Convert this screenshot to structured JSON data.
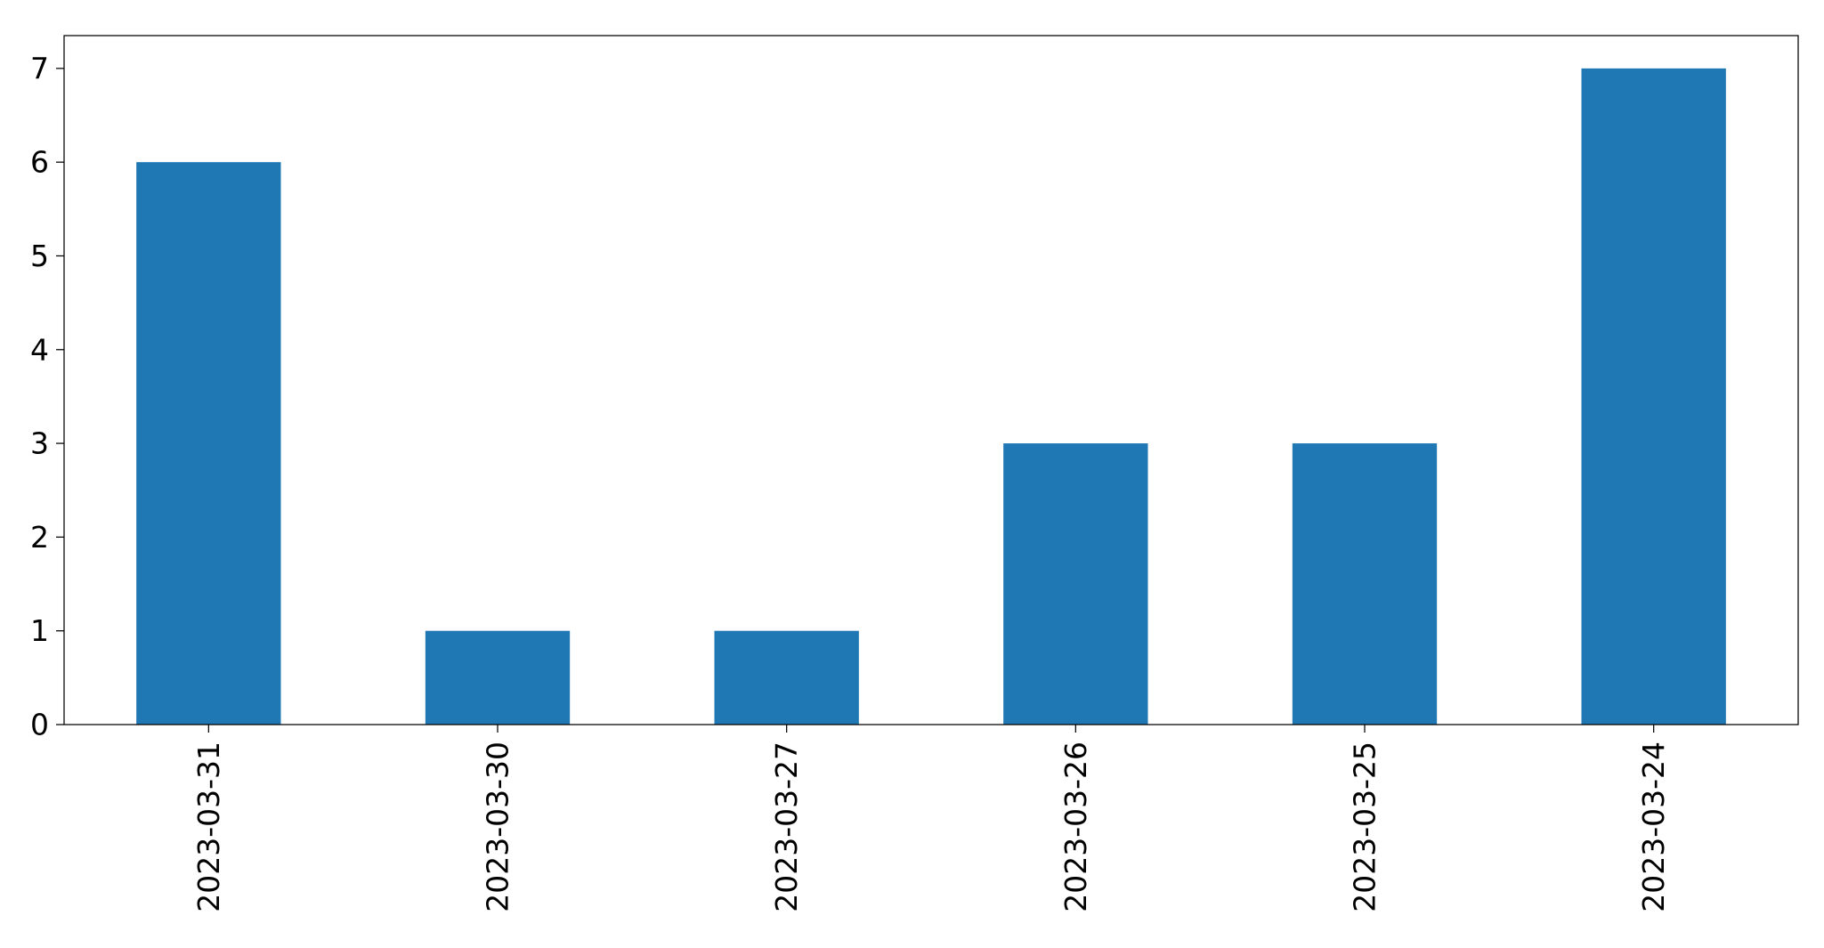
{
  "chart_data": {
    "type": "bar",
    "categories": [
      "2023-03-31",
      "2023-03-30",
      "2023-03-27",
      "2023-03-26",
      "2023-03-25",
      "2023-03-24"
    ],
    "values": [
      6,
      1,
      1,
      3,
      3,
      7
    ],
    "title": "",
    "xlabel": "",
    "ylabel": "",
    "ylim": [
      0,
      7.35
    ],
    "yticks": [
      0,
      1,
      2,
      3,
      4,
      5,
      6,
      7
    ],
    "grid": false,
    "legend": "none",
    "colors": {
      "bar": "#1f77b4",
      "axis": "#000000",
      "background": "#ffffff"
    }
  }
}
